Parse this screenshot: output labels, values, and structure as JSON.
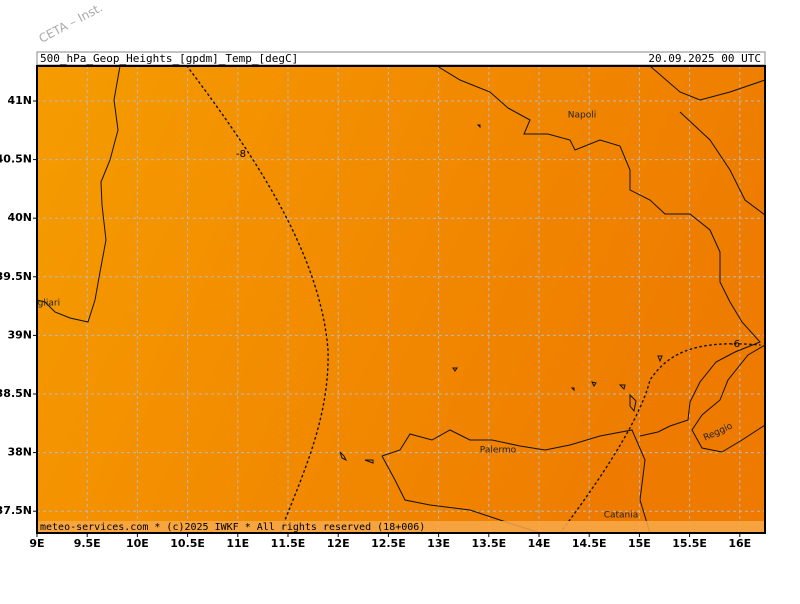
{
  "watermark": "CETA – Inst.",
  "header": {
    "title": "500_hPa_Geop_Heights_[gpdm]_Temp_[degC]",
    "datetime": "20.09.2025 00 UTC"
  },
  "footer": "meteo-services.com * (c)2025 IWKF * All rights reserved (18+006)",
  "x_axis": {
    "labels": [
      "9E",
      "9.5E",
      "10E",
      "10.5E",
      "11E",
      "11.5E",
      "12E",
      "12.5E",
      "13E",
      "13.5E",
      "14E",
      "14.5E",
      "15E",
      "15.5E",
      "16E"
    ]
  },
  "y_axis": {
    "labels": [
      "41N",
      "40.5N",
      "40N",
      "39.5N",
      "39N",
      "38.5N",
      "38N",
      "37.5N"
    ]
  },
  "places": {
    "napoli": "Napoli",
    "cagliari": "Cagliari",
    "palermo": "Palermo",
    "catania": "Catania",
    "reggio": "Reggio"
  },
  "contour_labels": {
    "west": "-8",
    "east": "-6"
  }
}
